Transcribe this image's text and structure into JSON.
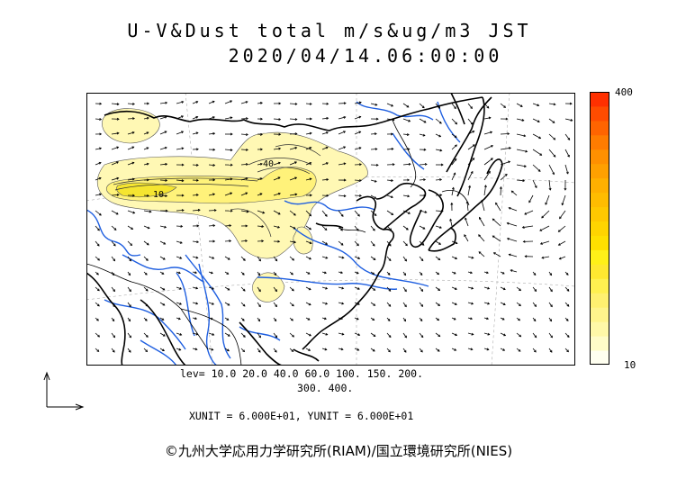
{
  "title_line1": "U-V&Dust total m/s&ug/m3 JST",
  "title_line2": "2020/04/14.06:00:00",
  "colorbar": {
    "max_label": "400",
    "min_label": "10",
    "colors": [
      "#fffff0",
      "#fffcc8",
      "#fff8a8",
      "#fff48c",
      "#fff070",
      "#fff050",
      "#ffe830",
      "#fff018",
      "#ffe000",
      "#ffd400",
      "#ffc800",
      "#ffbc00",
      "#ffb000",
      "#ffa000",
      "#ff9000",
      "#ff7c00",
      "#ff6400",
      "#ff4c00",
      "#ff3000"
    ]
  },
  "levels_line1": "lev= 10.0 20.0 40.0 60.0 100. 150. 200.",
  "levels_line2": "300. 400.",
  "units_line": "XUNIT = 6.000E+01, YUNIT = 6.000E+01",
  "credit": "©九州大学応用力学研究所(RIAM)/国立環境研究所(NIES)",
  "contour_labels": [
    "40",
    "10"
  ],
  "colors": {
    "dust_light": "#fff8b4",
    "dust_mid": "#fff27a",
    "dust_core": "#f5e530",
    "rivers": "#1f5fe0",
    "coast": "#000000"
  }
}
